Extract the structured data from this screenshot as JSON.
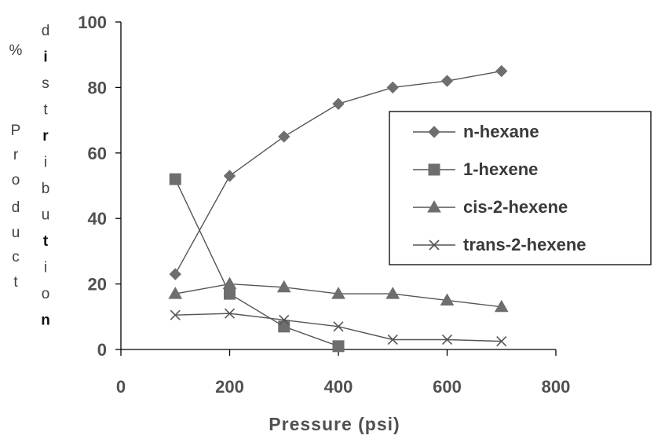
{
  "chart_data": {
    "type": "line",
    "x": [
      100,
      200,
      300,
      400,
      500,
      600,
      700
    ],
    "xlabel": "Pressure (psi)",
    "ylabel_left": [
      "%",
      "P",
      "r",
      "o",
      "d",
      "u",
      "c",
      "t"
    ],
    "ylabel_right": [
      "d",
      "i",
      "s",
      "t",
      "r",
      "i",
      "b",
      "u",
      "t",
      "i",
      "o",
      "n"
    ],
    "xlim": [
      0,
      800
    ],
    "ylim": [
      0,
      100
    ],
    "xticks": [
      0,
      200,
      400,
      600,
      800
    ],
    "yticks": [
      0,
      20,
      40,
      60,
      80,
      100
    ],
    "grid": false,
    "legend_position": "right",
    "series": [
      {
        "name": "n-hexane",
        "marker": "diamond",
        "color": "#6e6e6e",
        "points": [
          [
            100,
            23
          ],
          [
            200,
            53
          ],
          [
            300,
            65
          ],
          [
            400,
            75
          ],
          [
            500,
            80
          ],
          [
            600,
            82
          ],
          [
            700,
            85
          ]
        ]
      },
      {
        "name": "1-hexene",
        "marker": "square",
        "color": "#6e6e6e",
        "points": [
          [
            100,
            52
          ],
          [
            200,
            17
          ],
          [
            300,
            7
          ],
          [
            400,
            1
          ]
        ]
      },
      {
        "name": "cis-2-hexene",
        "marker": "triangle",
        "color": "#6e6e6e",
        "points": [
          [
            100,
            17
          ],
          [
            200,
            20
          ],
          [
            300,
            19
          ],
          [
            400,
            17
          ],
          [
            500,
            17
          ],
          [
            600,
            15
          ],
          [
            700,
            13
          ]
        ]
      },
      {
        "name": "trans-2-hexene",
        "marker": "x",
        "color": "#6e6e6e",
        "points": [
          [
            100,
            10.5
          ],
          [
            200,
            11
          ],
          [
            300,
            9
          ],
          [
            400,
            7
          ],
          [
            500,
            3
          ],
          [
            600,
            3
          ],
          [
            700,
            2.5
          ]
        ]
      }
    ]
  }
}
